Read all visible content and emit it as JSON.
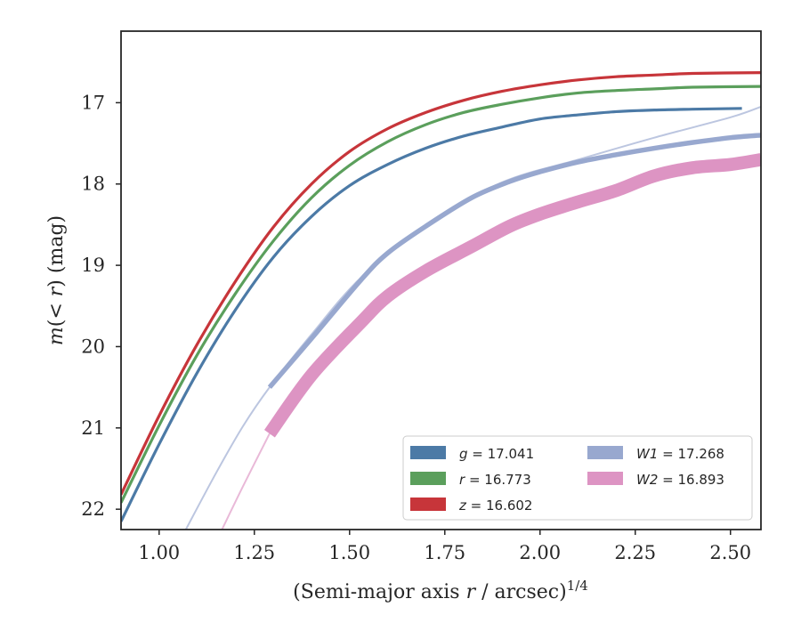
{
  "chart_data": {
    "type": "line",
    "xlabel": "(Semi-major axis r / arcsec)^1/4",
    "xlabel_parts": {
      "prefix": "(Semi-major axis ",
      "var": "r",
      "mid": " / arcsec)",
      "sup": "1/4"
    },
    "ylabel": "m(< r) (mag)",
    "ylabel_parts": {
      "var": "m",
      "open": "(< ",
      "var2": "r",
      "close": ") (mag)"
    },
    "xlim": [
      0.9,
      2.58
    ],
    "ylim": [
      22.25,
      16.12
    ],
    "y_inverted": true,
    "xticks": [
      1.0,
      1.25,
      1.5,
      1.75,
      2.0,
      2.25,
      2.5
    ],
    "xtick_labels": [
      "1.00",
      "1.25",
      "1.50",
      "1.75",
      "2.00",
      "2.25",
      "2.50"
    ],
    "yticks": [
      17,
      18,
      19,
      20,
      21,
      22
    ],
    "ytick_labels": [
      "17",
      "18",
      "19",
      "20",
      "21",
      "22"
    ],
    "grid": false,
    "legend_position": "lower-right",
    "legend_columns": 2,
    "series": [
      {
        "name": "g = 17.041",
        "label_var": "g",
        "label_value": "= 17.041",
        "color": "#4c7aa6",
        "band_width": 0.03,
        "x": [
          0.9,
          1.0,
          1.1,
          1.2,
          1.3,
          1.4,
          1.5,
          1.6,
          1.7,
          1.8,
          1.9,
          2.0,
          2.1,
          2.2,
          2.3,
          2.4,
          2.53
        ],
        "y": [
          22.15,
          21.2,
          20.32,
          19.55,
          18.9,
          18.4,
          18.02,
          17.76,
          17.56,
          17.41,
          17.3,
          17.2,
          17.15,
          17.11,
          17.09,
          17.08,
          17.07
        ]
      },
      {
        "name": "r = 16.773",
        "label_var": "r",
        "label_value": "= 16.773",
        "color": "#5b9f5c",
        "band_width": 0.03,
        "x": [
          0.9,
          1.0,
          1.1,
          1.2,
          1.3,
          1.4,
          1.5,
          1.6,
          1.7,
          1.8,
          1.9,
          2.0,
          2.1,
          2.2,
          2.3,
          2.4,
          2.58
        ],
        "y": [
          21.92,
          20.97,
          20.1,
          19.35,
          18.7,
          18.17,
          17.77,
          17.48,
          17.27,
          17.12,
          17.02,
          16.94,
          16.88,
          16.85,
          16.83,
          16.81,
          16.8
        ]
      },
      {
        "name": "z = 16.602",
        "label_var": "z",
        "label_value": "= 16.602",
        "color": "#c7353a",
        "band_width": 0.03,
        "x": [
          0.9,
          1.0,
          1.1,
          1.2,
          1.3,
          1.4,
          1.5,
          1.6,
          1.7,
          1.8,
          1.9,
          2.0,
          2.1,
          2.2,
          2.3,
          2.4,
          2.58
        ],
        "y": [
          21.82,
          20.85,
          19.97,
          19.2,
          18.53,
          18.0,
          17.6,
          17.32,
          17.12,
          16.97,
          16.86,
          16.78,
          16.72,
          16.68,
          16.66,
          16.64,
          16.63
        ]
      },
      {
        "name": "W1 = 17.268",
        "label_var": "W1",
        "label_value": "= 17.268",
        "color": "#98a8cf",
        "band_width": 0.06,
        "x": [
          1.29,
          1.4,
          1.53,
          1.6,
          1.7,
          1.82,
          1.92,
          2.0,
          2.1,
          2.2,
          2.3,
          2.4,
          2.5,
          2.58
        ],
        "y": [
          20.5,
          19.9,
          19.18,
          18.85,
          18.52,
          18.17,
          17.97,
          17.85,
          17.73,
          17.64,
          17.56,
          17.49,
          17.43,
          17.4
        ],
        "extrapolated": {
          "x": [
            1.07,
            1.15,
            1.22,
            1.29,
            1.4,
            1.53,
            1.7,
            1.9,
            2.1,
            2.3,
            2.5,
            2.58
          ],
          "y": [
            22.25,
            21.55,
            20.98,
            20.5,
            19.85,
            19.15,
            18.5,
            17.98,
            17.7,
            17.43,
            17.18,
            17.05
          ]
        }
      },
      {
        "name": "W2 = 16.893",
        "label_var": "W2",
        "label_value": "= 16.893",
        "color": "#dd94c3",
        "band_width": 0.16,
        "x": [
          1.29,
          1.4,
          1.53,
          1.6,
          1.7,
          1.82,
          1.92,
          2.0,
          2.1,
          2.2,
          2.3,
          2.4,
          2.5,
          2.58
        ],
        "y": [
          21.07,
          20.35,
          19.7,
          19.38,
          19.07,
          18.77,
          18.52,
          18.37,
          18.22,
          18.08,
          17.9,
          17.8,
          17.76,
          17.7
        ],
        "extrapolated": {
          "x": [
            1.165,
            1.22,
            1.29
          ],
          "y": [
            22.25,
            21.72,
            21.07
          ]
        }
      }
    ]
  }
}
